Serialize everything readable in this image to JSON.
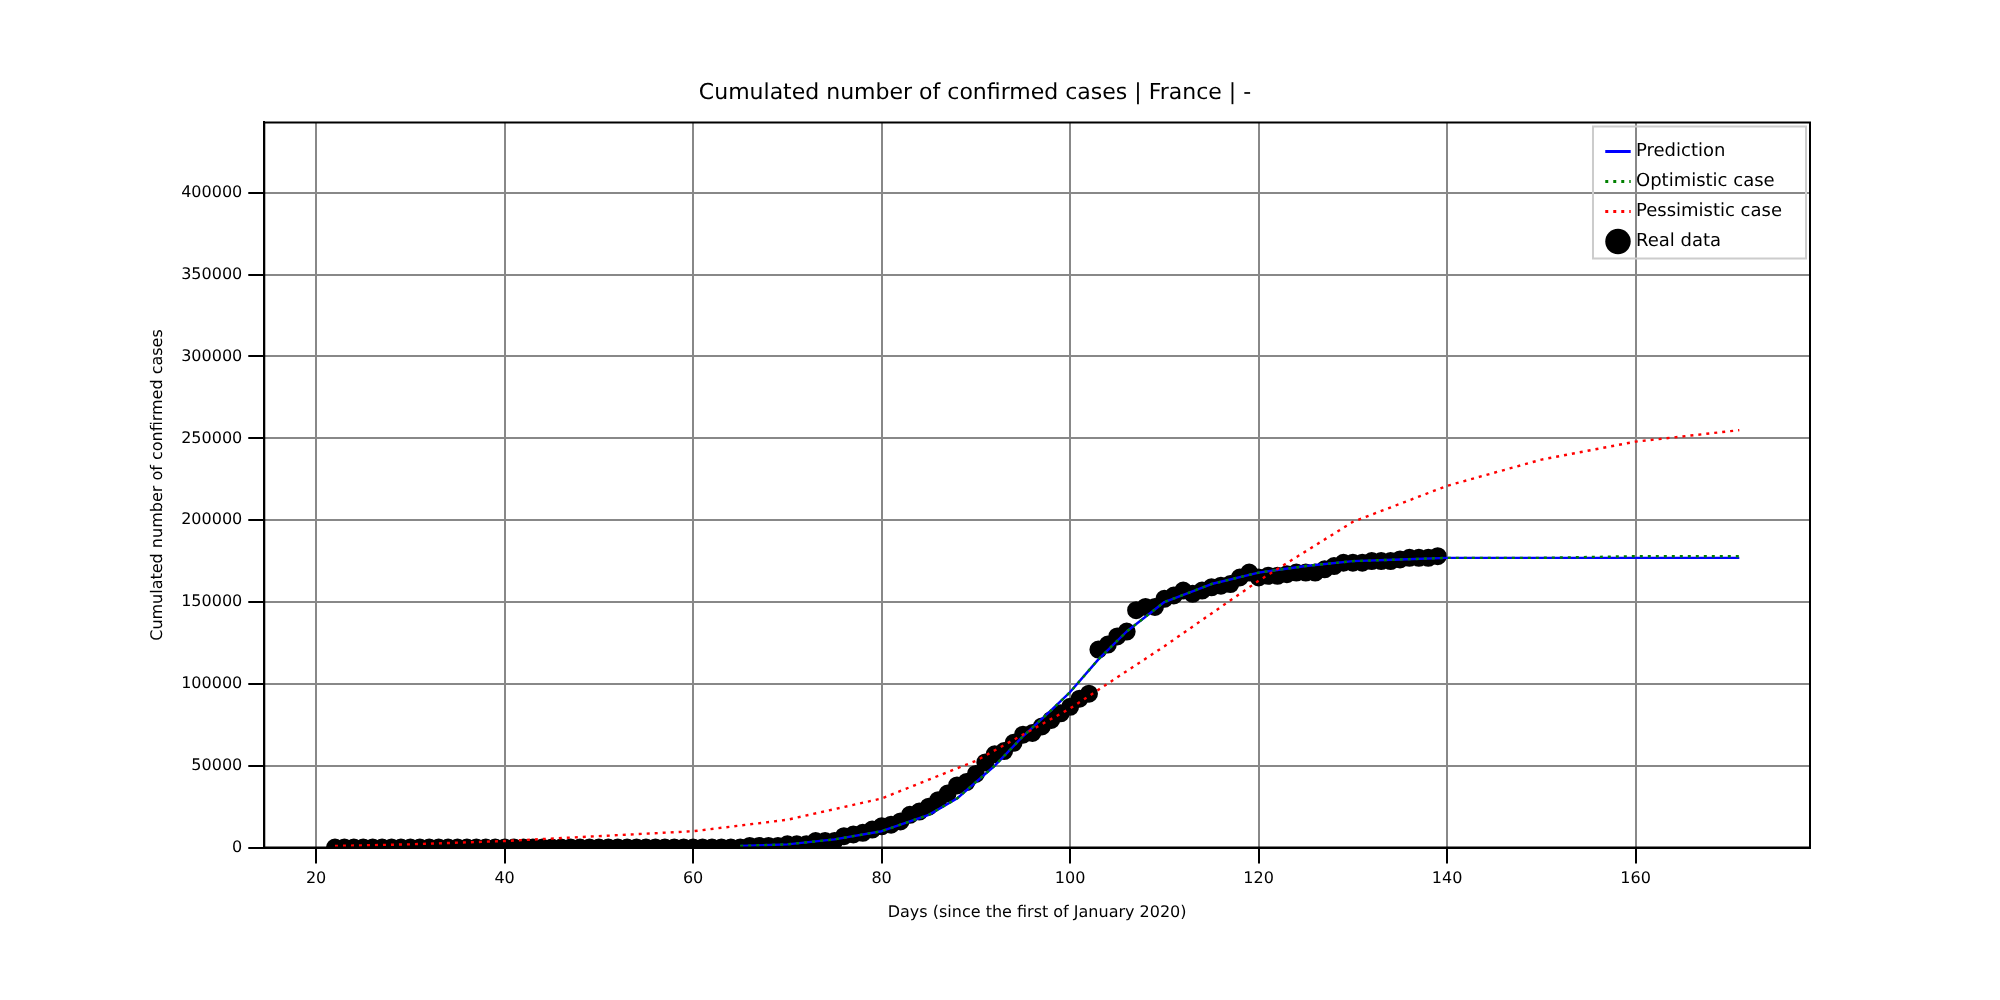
{
  "chart_data": {
    "type": "line",
    "title": "Cumulated number of confirmed cases | France | -",
    "xlabel": "Days (since the first of January 2020)",
    "ylabel": "Cumulated number of confirmed cases",
    "xlim": [
      14.5,
      178.5
    ],
    "xticks": [
      20,
      40,
      60,
      80,
      100,
      120,
      140,
      160
    ],
    "ylim": [
      0,
      443000
    ],
    "yticks": [
      0,
      50000,
      100000,
      150000,
      200000,
      250000,
      300000,
      350000,
      400000
    ],
    "grid": true,
    "legend": "top right",
    "series": [
      {
        "name": "Prediction",
        "type": "line",
        "color": "#0000ff",
        "line_style": "solid",
        "marker": "none",
        "x": [
          65,
          70,
          75,
          80,
          85,
          88,
          90,
          92,
          95,
          98,
          100,
          103,
          106,
          110,
          115,
          120,
          125,
          130,
          135,
          140,
          150,
          160,
          171
        ],
        "values": [
          1000,
          2000,
          5000,
          10000,
          20000,
          30000,
          40000,
          50000,
          68000,
          84000,
          95000,
          115000,
          132000,
          150000,
          161000,
          168000,
          172000,
          175000,
          176000,
          177000,
          177000,
          177000,
          177000
        ]
      },
      {
        "name": "Optimistic case",
        "type": "line",
        "color": "#008000",
        "line_style": "dotted",
        "marker": "none",
        "x": [
          65,
          70,
          75,
          80,
          85,
          88,
          90,
          92,
          95,
          98,
          100,
          103,
          106,
          110,
          115,
          120,
          125,
          130,
          135,
          140,
          150,
          160,
          171
        ],
        "values": [
          1000,
          2000,
          5000,
          10000,
          20000,
          30000,
          40000,
          50000,
          68000,
          84000,
          95000,
          115000,
          132000,
          150000,
          161000,
          168000,
          172000,
          175000,
          176000,
          177000,
          177000,
          178000,
          178000
        ]
      },
      {
        "name": "Pessimistic case",
        "type": "line",
        "color": "#ff0000",
        "line_style": "dotted",
        "marker": "none",
        "x": [
          22,
          30,
          40,
          50,
          60,
          70,
          80,
          90,
          100,
          110,
          120,
          130,
          140,
          150,
          160,
          171
        ],
        "values": [
          1000,
          2000,
          4000,
          7000,
          10000,
          17000,
          30000,
          53000,
          85000,
          123000,
          163000,
          199000,
          221000,
          237000,
          248000,
          255000
        ]
      },
      {
        "name": "Real data",
        "type": "scatter",
        "color": "#000000",
        "marker": "circle",
        "x": [
          22,
          23,
          24,
          25,
          26,
          27,
          28,
          29,
          30,
          31,
          32,
          33,
          34,
          35,
          36,
          37,
          38,
          39,
          40,
          41,
          42,
          43,
          44,
          45,
          46,
          47,
          48,
          49,
          50,
          51,
          52,
          53,
          54,
          55,
          56,
          57,
          58,
          59,
          60,
          61,
          62,
          63,
          64,
          65,
          66,
          67,
          68,
          69,
          70,
          71,
          72,
          73,
          74,
          75,
          76,
          77,
          78,
          79,
          80,
          81,
          82,
          83,
          84,
          85,
          86,
          87,
          88,
          89,
          90,
          91,
          92,
          93,
          94,
          95,
          96,
          97,
          98,
          99,
          100,
          101,
          102,
          103,
          104,
          105,
          106,
          107,
          108,
          109,
          110,
          111,
          112,
          113,
          114,
          115,
          116,
          117,
          118,
          119,
          120,
          121,
          122,
          123,
          124,
          125,
          126,
          127,
          128,
          129,
          130,
          131,
          132,
          133,
          134,
          135,
          136,
          137,
          138,
          139
        ],
        "values": [
          0,
          0,
          0,
          0,
          0,
          0,
          0,
          0,
          0,
          0,
          0,
          0,
          0,
          0,
          0,
          0,
          0,
          0,
          0,
          0,
          0,
          0,
          0,
          0,
          0,
          0,
          0,
          0,
          0,
          0,
          0,
          0,
          0,
          0,
          0,
          0,
          0,
          0,
          0,
          0,
          0,
          0,
          0,
          0,
          1000,
          1000,
          1000,
          1000,
          2000,
          2000,
          2000,
          4000,
          4000,
          4000,
          7000,
          8000,
          9000,
          11000,
          13000,
          14000,
          16000,
          20000,
          22000,
          25000,
          29000,
          33000,
          38000,
          40000,
          45000,
          52000,
          57000,
          59000,
          64000,
          69000,
          70000,
          74000,
          78000,
          82000,
          86000,
          91000,
          94000,
          121000,
          124000,
          129000,
          132000,
          145000,
          147000,
          147000,
          152000,
          154000,
          157000,
          155000,
          157000,
          159000,
          160000,
          161000,
          165000,
          168000,
          165000,
          166000,
          166000,
          167000,
          168000,
          168000,
          168000,
          170000,
          172000,
          174000,
          174000,
          174000,
          175000,
          175000,
          175000,
          176000,
          177000,
          177000,
          177000,
          178000
        ]
      }
    ]
  }
}
